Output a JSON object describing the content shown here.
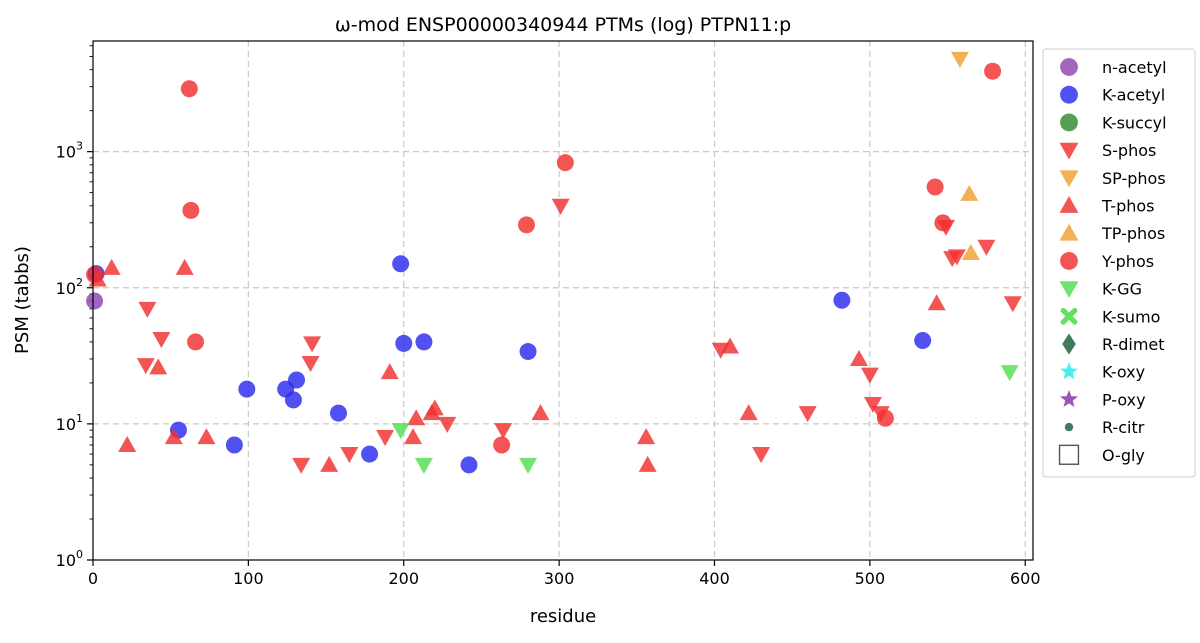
{
  "chart_data": {
    "type": "scatter",
    "title": "ω-mod ENSP00000340944 PTMs (log) PTPN11:p",
    "xlabel": "residue",
    "ylabel": "PSM (tabbs)",
    "xlim": [
      0,
      605
    ],
    "ylim": [
      1,
      6500
    ],
    "yscale": "log",
    "x_ticks": [
      "0",
      "100",
      "200",
      "300",
      "400",
      "500",
      "600"
    ],
    "y_ticks": [
      {
        "base": "10",
        "exp": "0"
      },
      {
        "base": "10",
        "exp": "1"
      },
      {
        "base": "10",
        "exp": "2"
      },
      {
        "base": "10",
        "exp": "3"
      }
    ],
    "grid": true,
    "legend_position": "outside-right",
    "series": [
      {
        "name": "n-acetyl",
        "marker": "circle",
        "color": "#8e44ad",
        "points": [
          [
            1,
            80
          ]
        ]
      },
      {
        "name": "K-acetyl",
        "marker": "circle",
        "color": "#2b2bef",
        "points": [
          [
            2,
            127
          ],
          [
            55,
            9
          ],
          [
            91,
            7
          ],
          [
            99,
            18
          ],
          [
            124,
            18
          ],
          [
            129,
            15
          ],
          [
            131,
            21
          ],
          [
            158,
            12
          ],
          [
            178,
            6
          ],
          [
            198,
            150
          ],
          [
            200,
            39
          ],
          [
            213,
            40
          ],
          [
            242,
            5
          ],
          [
            280,
            34
          ],
          [
            482,
            81
          ],
          [
            534,
            41
          ]
        ]
      },
      {
        "name": "K-succyl",
        "marker": "circle",
        "color": "#2e8b2e",
        "points": []
      },
      {
        "name": "S-phos",
        "marker": "triangle-down",
        "color": "#f03030",
        "points": [
          [
            35,
            70
          ],
          [
            34,
            27
          ],
          [
            44,
            42
          ],
          [
            141,
            39
          ],
          [
            140,
            28
          ],
          [
            134,
            5
          ],
          [
            165,
            6
          ],
          [
            188,
            8
          ],
          [
            228,
            10
          ],
          [
            264,
            9
          ],
          [
            301,
            400
          ],
          [
            404,
            35
          ],
          [
            430,
            6
          ],
          [
            460,
            12
          ],
          [
            500,
            23
          ],
          [
            502,
            14
          ],
          [
            507,
            12
          ],
          [
            549,
            280
          ],
          [
            553,
            165
          ],
          [
            556,
            170
          ],
          [
            575,
            200
          ],
          [
            592,
            77
          ]
        ]
      },
      {
        "name": "SP-phos",
        "marker": "triangle-down",
        "color": "#f0a030",
        "points": [
          [
            558,
            4800
          ]
        ]
      },
      {
        "name": "T-phos",
        "marker": "triangle-up",
        "color": "#f03030",
        "points": [
          [
            3,
            115
          ],
          [
            12,
            140
          ],
          [
            22,
            7
          ],
          [
            42,
            26
          ],
          [
            52,
            8
          ],
          [
            59,
            140
          ],
          [
            73,
            8
          ],
          [
            152,
            5
          ],
          [
            191,
            24
          ],
          [
            206,
            8
          ],
          [
            208,
            11
          ],
          [
            218,
            12
          ],
          [
            220,
            13
          ],
          [
            288,
            12
          ],
          [
            356,
            8
          ],
          [
            357,
            5
          ],
          [
            410,
            37
          ],
          [
            422,
            12
          ],
          [
            493,
            30
          ],
          [
            543,
            77
          ]
        ]
      },
      {
        "name": "TP-phos",
        "marker": "triangle-up",
        "color": "#f0a030",
        "points": [
          [
            564,
            490
          ],
          [
            565,
            180
          ]
        ]
      },
      {
        "name": "Y-phos",
        "marker": "circle",
        "color": "#f03030",
        "points": [
          [
            1,
            125
          ],
          [
            62,
            2900
          ],
          [
            63,
            370
          ],
          [
            66,
            40
          ],
          [
            263,
            7
          ],
          [
            279,
            290
          ],
          [
            304,
            830
          ],
          [
            510,
            11
          ],
          [
            542,
            550
          ],
          [
            547,
            300
          ],
          [
            579,
            3900
          ]
        ]
      },
      {
        "name": "K-GG",
        "marker": "triangle-down",
        "color": "#50dd50",
        "points": [
          [
            198,
            9
          ],
          [
            213,
            5
          ],
          [
            280,
            5
          ],
          [
            590,
            24
          ]
        ]
      },
      {
        "name": "K-sumo",
        "marker": "x",
        "color": "#50dd50",
        "points": []
      },
      {
        "name": "R-dimet",
        "marker": "diamond",
        "color": "#2e6b50",
        "points": []
      },
      {
        "name": "K-oxy",
        "marker": "star",
        "color": "#30f0f0",
        "points": []
      },
      {
        "name": "P-oxy",
        "marker": "star",
        "color": "#8e44ad",
        "points": []
      },
      {
        "name": "R-citr",
        "marker": "small-circle",
        "color": "#2e6b50",
        "points": []
      },
      {
        "name": "O-gly",
        "marker": "square-open",
        "color": "#555555",
        "points": []
      }
    ]
  }
}
